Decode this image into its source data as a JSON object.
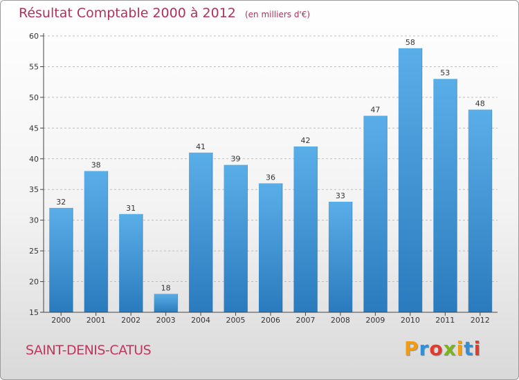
{
  "header": {
    "title": "Résultat Comptable 2000 à 2012",
    "unit": "(en milliers d'€)"
  },
  "commune": "SAINT-DENIS-CATUS",
  "logo": {
    "letters": [
      "P",
      "r",
      "o",
      "x",
      "i",
      "t",
      "i"
    ],
    "colors": [
      "#f39c12",
      "#2f8fd8",
      "#e23b2e",
      "#7ab51d",
      "#f39c12",
      "#2f8fd8",
      "#e23b2e"
    ]
  },
  "colors": {
    "bar_top": "#5aaee8",
    "bar_bottom": "#2a7bbd",
    "grid": "#bdbdbd",
    "axis": "#444444",
    "text": "#333333"
  },
  "chart_data": {
    "type": "bar",
    "title": "Résultat Comptable 2000 à 2012",
    "subtitle": "(en milliers d'€)",
    "xlabel": "",
    "ylabel": "",
    "categories": [
      "2000",
      "2001",
      "2002",
      "2003",
      "2004",
      "2005",
      "2006",
      "2007",
      "2008",
      "2009",
      "2010",
      "2011",
      "2012"
    ],
    "values": [
      32,
      38,
      31,
      18,
      41,
      39,
      36,
      42,
      33,
      47,
      58,
      53,
      48
    ],
    "ylim": [
      15,
      60
    ],
    "yticks": [
      15,
      20,
      25,
      30,
      35,
      40,
      45,
      50,
      55,
      60
    ],
    "grid": true
  }
}
